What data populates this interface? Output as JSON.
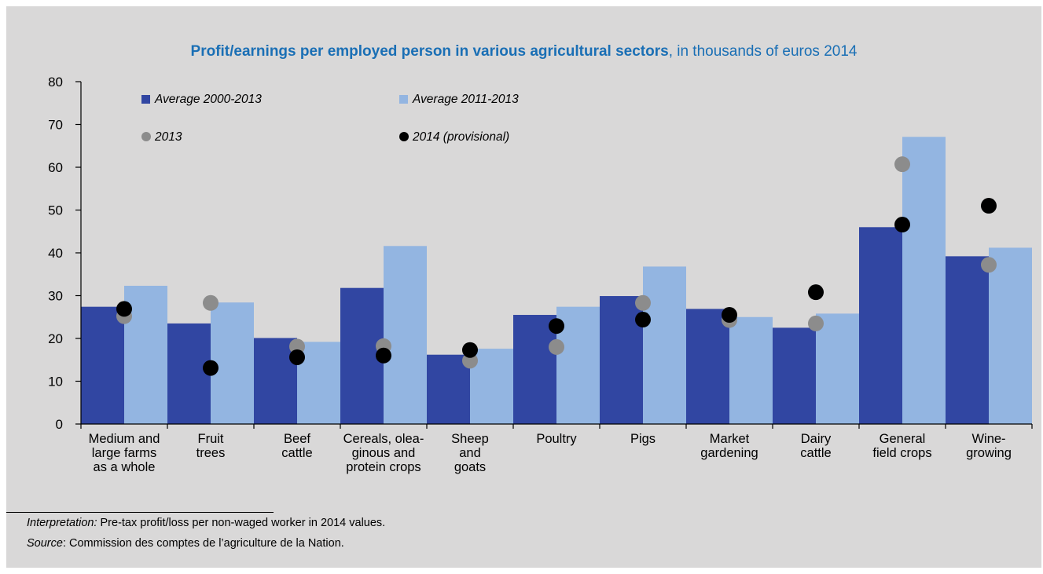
{
  "title": {
    "bold": "Profit/earnings per employed person in various agricultural sectors",
    "rest": ", in thousands of euros 2014"
  },
  "notes": {
    "interpretation_label": "Interpretation:",
    "interpretation_text": " Pre-tax profit/loss per non-waged worker in 2014 values.",
    "source_label": "Source",
    "source_text": ": Commission des comptes de l’agriculture de la Nation."
  },
  "colors": {
    "background": "#d9d8d8",
    "title": "#1a6fb5",
    "avg_2000_2013": "#3146a2",
    "avg_2011_2013": "#93b5e1",
    "y2013": "#8c8c8c",
    "y2014": "#000000"
  },
  "chart_data": {
    "type": "bar",
    "title": "Profit/earnings per employed person in various agricultural sectors, in thousands of euros 2014",
    "xlabel": "",
    "ylabel": "",
    "ylim": [
      0,
      80
    ],
    "yticks": [
      0,
      10,
      20,
      30,
      40,
      50,
      60,
      70,
      80
    ],
    "grid": false,
    "legend_position": "top-left",
    "categories": [
      [
        "Medium and",
        "large farms",
        "as a whole"
      ],
      [
        "Fruit",
        "trees"
      ],
      [
        "Beef",
        "cattle"
      ],
      [
        "Cereals, olea-",
        "ginous and",
        "protein crops"
      ],
      [
        "Sheep",
        "and",
        "goats"
      ],
      [
        "Poultry"
      ],
      [
        "Pigs"
      ],
      [
        "Market",
        "gardening"
      ],
      [
        "Dairy",
        "cattle"
      ],
      [
        "General",
        "field crops"
      ],
      [
        "Wine-",
        "growing"
      ]
    ],
    "series": [
      {
        "name": "Average 2000-2013",
        "kind": "bar",
        "color": "#3146a2",
        "values": [
          27.4,
          23.5,
          20.1,
          31.8,
          16.2,
          25.5,
          29.9,
          26.9,
          22.5,
          46.0,
          39.2
        ]
      },
      {
        "name": "Average 2011-2013",
        "kind": "bar",
        "color": "#93b5e1",
        "values": [
          32.3,
          28.4,
          19.2,
          41.6,
          17.6,
          27.4,
          36.8,
          25.0,
          25.8,
          67.1,
          41.2
        ]
      },
      {
        "name": "2013",
        "kind": "dot",
        "color": "#8c8c8c",
        "values": [
          25.2,
          28.3,
          18.1,
          18.2,
          14.8,
          18.0,
          28.3,
          24.3,
          23.5,
          60.7,
          37.2
        ]
      },
      {
        "name": "2014 (provisional)",
        "kind": "dot",
        "color": "#000000",
        "values": [
          26.9,
          13.1,
          15.6,
          16.0,
          17.3,
          22.9,
          24.4,
          25.5,
          30.8,
          46.6,
          51.0
        ]
      }
    ]
  }
}
